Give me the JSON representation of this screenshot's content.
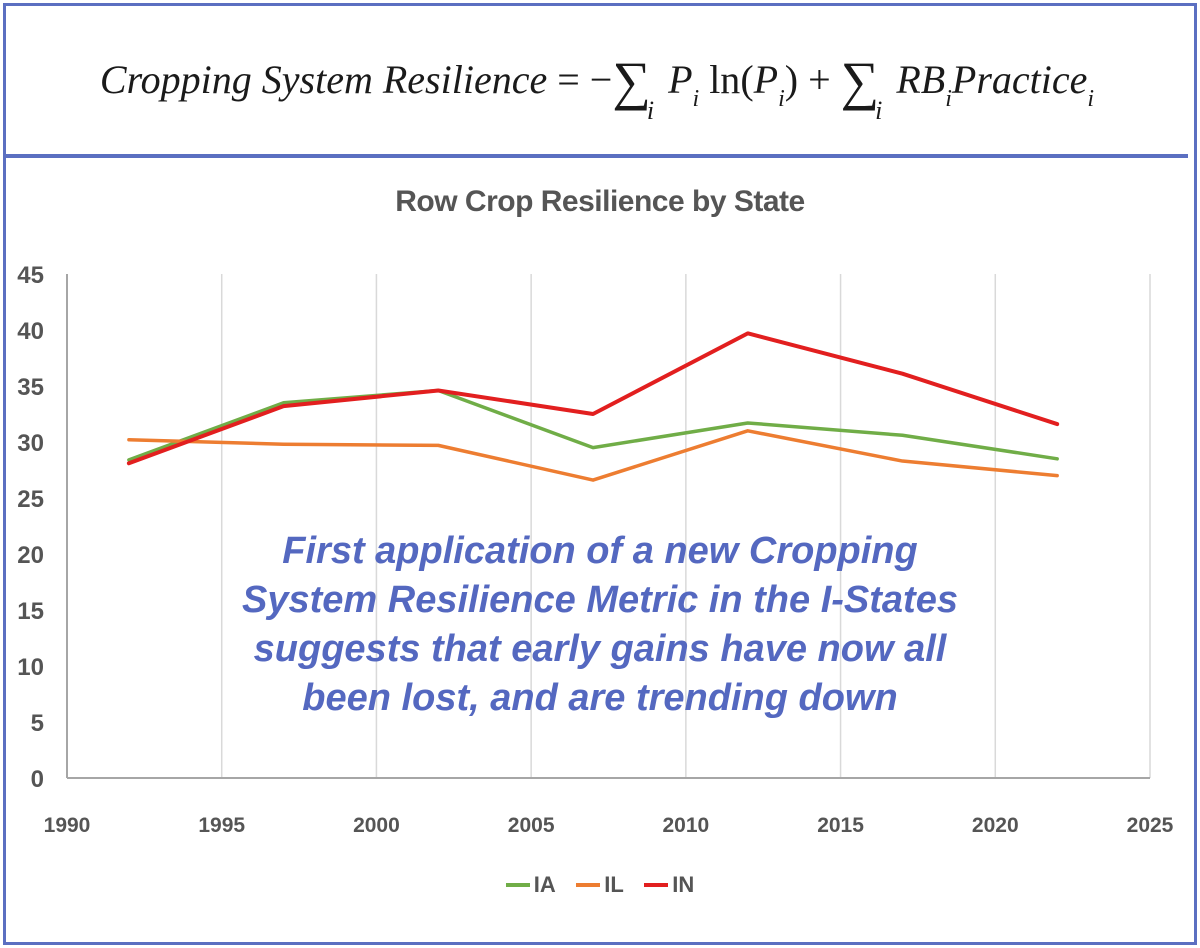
{
  "equation": {
    "lhs": "Cropping System Resilience",
    "eq": "=",
    "minus": "−",
    "sum": "∑",
    "index": "i",
    "p": "P",
    "ln": "ln",
    "lparen": "(",
    "rparen": ")",
    "plus": "+",
    "rb": "RB",
    "practice": "Practice"
  },
  "overlay_lines": [
    "First application of a new Cropping",
    "System Resilience Metric in the I-States",
    "suggests that early gains have now all",
    "been lost, and are trending down"
  ],
  "chart_data": {
    "type": "line",
    "title": "Row Crop Resilience by State",
    "xlabel": "",
    "ylabel": "",
    "xlim": [
      1990,
      2025
    ],
    "ylim": [
      0,
      45
    ],
    "x_ticks": [
      1990,
      1995,
      2000,
      2005,
      2010,
      2015,
      2020,
      2025
    ],
    "y_ticks": [
      0,
      5,
      10,
      15,
      20,
      25,
      30,
      35,
      40,
      45
    ],
    "grid": "vertical",
    "legend_position": "bottom",
    "x": [
      1992,
      1997,
      2002,
      2007,
      2012,
      2017,
      2022
    ],
    "series": [
      {
        "name": "IA",
        "color": "#70ad47",
        "values": [
          28.4,
          33.5,
          34.6,
          29.5,
          31.7,
          30.6,
          28.5
        ]
      },
      {
        "name": "IL",
        "color": "#ed7d31",
        "values": [
          30.2,
          29.8,
          29.7,
          26.6,
          31.0,
          28.3,
          27.0
        ]
      },
      {
        "name": "IN",
        "color": "#e21f1f",
        "values": [
          28.1,
          33.2,
          34.6,
          32.5,
          39.7,
          36.1,
          31.6
        ]
      }
    ]
  }
}
